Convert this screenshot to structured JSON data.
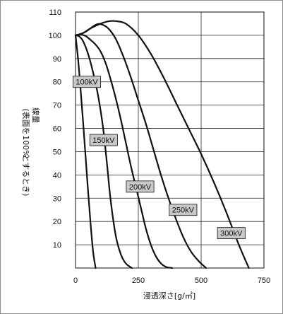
{
  "chart_data": {
    "type": "line",
    "xlabel": "浸透深さ[g/㎡]",
    "ylabel_lines": [
      "線量",
      "(表面を",
      "100%",
      "とするとき)"
    ],
    "xlim": [
      0,
      750
    ],
    "ylim": [
      0,
      110
    ],
    "x_ticks": [
      0,
      250,
      500,
      750
    ],
    "y_ticks": [
      10,
      20,
      30,
      40,
      50,
      60,
      70,
      80,
      90,
      100,
      110
    ],
    "grid": true,
    "series": [
      {
        "name": "100kV",
        "label_at": [
          45,
          80
        ],
        "x": [
          0,
          10,
          20,
          30,
          40,
          50,
          60,
          70,
          80
        ],
        "y": [
          100,
          90,
          77,
          63,
          48,
          33,
          19,
          7,
          0
        ]
      },
      {
        "name": "150kV",
        "label_at": [
          112,
          55
        ],
        "x": [
          0,
          15,
          30,
          50,
          70,
          90,
          110,
          125,
          140,
          160,
          180,
          200,
          225
        ],
        "y": [
          100,
          99.5,
          97.5,
          92,
          84,
          74,
          60,
          45,
          29,
          14,
          6,
          2,
          0
        ]
      },
      {
        "name": "200kV",
        "label_at": [
          257,
          35
        ],
        "x": [
          0,
          20,
          40,
          60,
          80,
          100,
          120,
          140,
          160,
          180,
          200,
          220,
          240,
          260,
          280,
          300,
          320,
          340,
          360,
          385
        ],
        "y": [
          100,
          100.3,
          99.7,
          98,
          96,
          93,
          88,
          81,
          73,
          64,
          54,
          44,
          35,
          26,
          17,
          10,
          5,
          2,
          0.5,
          0
        ]
      },
      {
        "name": "250kV",
        "label_at": [
          428,
          25
        ],
        "x": [
          0,
          20,
          40,
          60,
          80,
          100,
          130,
          160,
          190,
          220,
          250,
          280,
          310,
          340,
          370,
          400,
          430,
          460,
          490,
          520
        ],
        "y": [
          100,
          100.5,
          101.5,
          103,
          104.5,
          104.8,
          103,
          98.5,
          91,
          82,
          72,
          62,
          51,
          40,
          30,
          21,
          13,
          7,
          3,
          0
        ]
      },
      {
        "name": "300kV",
        "label_at": [
          620,
          15
        ],
        "x": [
          0,
          30,
          60,
          100,
          130,
          160,
          200,
          250,
          300,
          350,
          400,
          450,
          500,
          550,
          600,
          650,
          690
        ],
        "y": [
          100,
          101,
          103,
          105,
          106,
          106.1,
          105,
          100,
          92,
          82,
          71,
          60,
          49,
          37,
          24,
          10,
          0
        ]
      }
    ]
  }
}
